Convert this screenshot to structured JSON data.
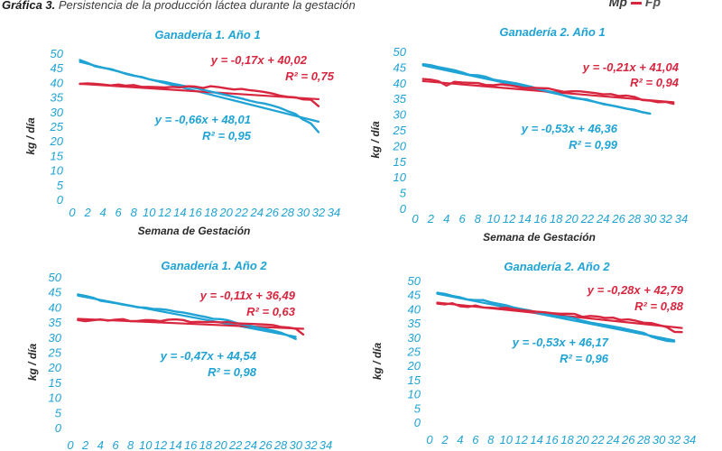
{
  "caption": {
    "prefix": "Gráfica 3.",
    "text": "Persistencia de la producción láctea durante la gestación"
  },
  "legend": {
    "mp": "Mp",
    "fp": "Fp"
  },
  "colors": {
    "mp": "#1fa3d5",
    "fp": "#d9263f",
    "axis_text": "#1fa3d5"
  },
  "chart_data": [
    {
      "type": "line",
      "title": "Ganadería 1. Año 1",
      "xlabel": "Semana de Gestación",
      "ylabel": "kg / día",
      "xticks": [
        "0",
        "2",
        "4",
        "6",
        "8",
        "10",
        "12",
        "14",
        "16",
        "18",
        "20",
        "22",
        "24",
        "26",
        "28",
        "30",
        "32",
        "34"
      ],
      "yticks": [
        "0",
        "5",
        "10",
        "15",
        "20",
        "25",
        "30",
        "35",
        "40",
        "45",
        "50"
      ],
      "xlim": [
        0,
        34
      ],
      "ylim": [
        0,
        50
      ],
      "grid": false,
      "series": [
        {
          "key": "mp",
          "x": [
            1,
            2,
            3,
            4,
            5,
            6,
            7,
            8,
            9,
            10,
            11,
            12,
            13,
            14,
            15,
            16,
            17,
            18,
            19,
            20,
            21,
            22,
            23,
            24,
            25,
            26,
            27,
            28,
            29,
            30,
            31,
            32
          ],
          "values": [
            48,
            47,
            45.8,
            45.3,
            44.9,
            44.1,
            43.2,
            42.6,
            42.2,
            41.4,
            40.9,
            40.5,
            39.9,
            39.4,
            38.9,
            38.4,
            37.8,
            37.2,
            36.6,
            36.0,
            35.4,
            34.8,
            34.1,
            33.5,
            33.1,
            32.4,
            31.6,
            30.5,
            29.5,
            27.6,
            26.3,
            23.3
          ]
        },
        {
          "key": "fp",
          "x": [
            1,
            2,
            3,
            4,
            5,
            6,
            7,
            8,
            9,
            10,
            11,
            12,
            13,
            14,
            15,
            16,
            17,
            18,
            19,
            20,
            21,
            22,
            23,
            24,
            25,
            26,
            27,
            28,
            29,
            30,
            31,
            32
          ],
          "values": [
            39.8,
            40.0,
            39.8,
            39.6,
            39.3,
            39.6,
            39.2,
            39.4,
            38.8,
            38.8,
            38.7,
            38.6,
            38.8,
            38.6,
            39.0,
            38.9,
            38.4,
            39.0,
            38.7,
            38.3,
            37.9,
            38.1,
            37.7,
            37.4,
            37.0,
            36.5,
            35.8,
            35.4,
            35.2,
            34.5,
            34.4,
            32.2
          ]
        }
      ],
      "trendlines": [
        {
          "key": "mp",
          "slope": -0.66,
          "intercept": 48.01,
          "equation": "y = -0,66x + 48,01",
          "r2": "R² = 0,95"
        },
        {
          "key": "fp",
          "slope": -0.17,
          "intercept": 40.02,
          "equation": "y = -0,17x + 40,02",
          "r2": "R² = 0,75"
        }
      ]
    },
    {
      "type": "line",
      "title": "Ganadería 2. Año 1",
      "xlabel": "Semana de Gestación",
      "ylabel": "kg / día",
      "xticks": [
        "0",
        "2",
        "4",
        "6",
        "8",
        "10",
        "12",
        "14",
        "16",
        "18",
        "20",
        "22",
        "24",
        "26",
        "28",
        "30",
        "32",
        "34"
      ],
      "yticks": [
        "0",
        "5",
        "10",
        "15",
        "20",
        "25",
        "30",
        "35",
        "40",
        "45",
        "50"
      ],
      "xlim": [
        0,
        34
      ],
      "ylim": [
        0,
        50
      ],
      "grid": false,
      "series": [
        {
          "key": "mp",
          "x": [
            1,
            2,
            3,
            4,
            5,
            6,
            7,
            8,
            9,
            10,
            11,
            12,
            13,
            14,
            15,
            16,
            17,
            18,
            19,
            20,
            21,
            22,
            23,
            24,
            25,
            26,
            27,
            28,
            29,
            30
          ],
          "values": [
            46.2,
            45.9,
            45.3,
            44.8,
            44.3,
            43.6,
            42.8,
            42.7,
            42.2,
            41.3,
            40.9,
            40.5,
            40.1,
            39.5,
            38.9,
            38.1,
            37.6,
            37.1,
            36.2,
            35.5,
            35.2,
            34.9,
            34.2,
            33.5,
            33.1,
            32.6,
            32.0,
            31.7,
            30.9,
            30.5
          ]
        },
        {
          "key": "fp",
          "x": [
            1,
            2,
            3,
            4,
            5,
            6,
            7,
            8,
            9,
            10,
            11,
            12,
            13,
            14,
            15,
            16,
            17,
            18,
            19,
            20,
            21,
            22,
            23,
            24,
            25,
            26,
            27,
            28,
            29,
            30,
            31,
            32,
            33
          ],
          "values": [
            41.5,
            41.3,
            40.8,
            39.4,
            40.6,
            40.4,
            40.3,
            40.2,
            39.6,
            39.5,
            39.8,
            39.5,
            39.1,
            38.6,
            38.7,
            38.6,
            38.5,
            37.9,
            37.4,
            37.6,
            37.6,
            37.3,
            37.0,
            36.6,
            36.7,
            36.1,
            36.2,
            35.8,
            34.8,
            34.6,
            34.1,
            34.2,
            33.6
          ]
        }
      ],
      "trendlines": [
        {
          "key": "mp",
          "slope": -0.53,
          "intercept": 46.36,
          "equation": "y = -0,53x + 46,36",
          "r2": "R² = 0,99"
        },
        {
          "key": "fp",
          "slope": -0.21,
          "intercept": 41.04,
          "equation": "y = -0,21x + 41,04",
          "r2": "R² = 0,94"
        }
      ]
    },
    {
      "type": "line",
      "title": "Ganadería 1. Año 2",
      "xlabel": "",
      "ylabel": "kg / día",
      "xticks": [
        "0",
        "2",
        "4",
        "6",
        "8",
        "10",
        "12",
        "14",
        "16",
        "18",
        "20",
        "22",
        "24",
        "26",
        "28",
        "30",
        "32",
        "34"
      ],
      "yticks": [
        "0",
        "5",
        "10",
        "15",
        "20",
        "25",
        "30",
        "35",
        "40",
        "45",
        "50"
      ],
      "xlim": [
        0,
        34
      ],
      "ylim": [
        0,
        50
      ],
      "grid": false,
      "series": [
        {
          "key": "mp",
          "x": [
            1,
            2,
            3,
            4,
            5,
            6,
            7,
            8,
            9,
            10,
            11,
            12,
            13,
            14,
            15,
            16,
            17,
            18,
            19,
            20,
            21,
            22,
            23,
            24,
            25,
            26,
            27,
            28,
            29,
            30
          ],
          "values": [
            44.5,
            44.0,
            43.4,
            42.4,
            42.0,
            41.6,
            41.1,
            40.7,
            40.2,
            40.1,
            39.7,
            39.6,
            39.3,
            38.8,
            38.5,
            38.0,
            37.5,
            37.0,
            36.4,
            36.3,
            35.9,
            35.1,
            34.5,
            34.0,
            33.4,
            33.0,
            32.5,
            31.8,
            30.8,
            29.7
          ]
        },
        {
          "key": "fp",
          "x": [
            1,
            2,
            3,
            4,
            5,
            6,
            7,
            8,
            9,
            10,
            11,
            12,
            13,
            14,
            15,
            16,
            17,
            18,
            19,
            20,
            21,
            22,
            23,
            24,
            25,
            26,
            27,
            28,
            29,
            30,
            31
          ],
          "values": [
            36.0,
            35.6,
            35.9,
            36.2,
            35.8,
            36.1,
            36.3,
            35.6,
            35.7,
            36.0,
            35.9,
            35.6,
            36.1,
            36.2,
            36.0,
            35.3,
            35.4,
            35.3,
            35.4,
            35.2,
            35.3,
            34.9,
            34.8,
            34.7,
            34.6,
            34.5,
            34.3,
            33.7,
            33.5,
            33.1,
            31.2
          ]
        }
      ],
      "trendlines": [
        {
          "key": "mp",
          "slope": -0.47,
          "intercept": 44.54,
          "equation": "y = -0,47x + 44,54",
          "r2": "R² = 0,98"
        },
        {
          "key": "fp",
          "slope": -0.11,
          "intercept": 36.49,
          "equation": "y = -0,11x + 36,49",
          "r2": "R² = 0,63"
        }
      ]
    },
    {
      "type": "line",
      "title": "Ganadería 2. Año 2",
      "xlabel": "",
      "ylabel": "kg / día",
      "xticks": [
        "0",
        "2",
        "4",
        "6",
        "8",
        "10",
        "12",
        "14",
        "16",
        "18",
        "20",
        "22",
        "24",
        "26",
        "28",
        "30",
        "32",
        "34"
      ],
      "yticks": [
        "0",
        "5",
        "10",
        "15",
        "20",
        "25",
        "30",
        "35",
        "40",
        "45",
        "50"
      ],
      "xlim": [
        0,
        34
      ],
      "ylim": [
        0,
        50
      ],
      "grid": false,
      "series": [
        {
          "key": "mp",
          "x": [
            1,
            2,
            3,
            4,
            5,
            6,
            7,
            8,
            9,
            10,
            11,
            12,
            13,
            14,
            15,
            16,
            17,
            18,
            19,
            20,
            21,
            22,
            23,
            24,
            25,
            26,
            27,
            28,
            29,
            30,
            31,
            32
          ],
          "values": [
            46.0,
            45.6,
            44.9,
            44.4,
            43.6,
            43.4,
            43.4,
            42.6,
            42.1,
            41.6,
            40.8,
            40.3,
            39.8,
            39.1,
            38.5,
            38.0,
            37.6,
            37.4,
            36.9,
            36.1,
            35.5,
            35.0,
            34.6,
            34.1,
            33.6,
            33.0,
            32.4,
            31.8,
            30.5,
            29.7,
            29.0,
            28.8
          ]
        },
        {
          "key": "fp",
          "x": [
            1,
            2,
            3,
            4,
            5,
            6,
            7,
            8,
            9,
            10,
            11,
            12,
            13,
            14,
            15,
            16,
            17,
            18,
            19,
            20,
            21,
            22,
            23,
            24,
            25,
            26,
            27,
            28,
            29,
            30,
            31,
            32,
            33
          ],
          "values": [
            42.2,
            41.9,
            42.3,
            41.2,
            41.0,
            41.5,
            40.8,
            40.7,
            40.5,
            40.7,
            40.2,
            39.8,
            39.6,
            39.3,
            39.1,
            38.8,
            38.6,
            38.6,
            38.5,
            37.5,
            37.8,
            37.6,
            37.1,
            37.2,
            36.4,
            36.6,
            36.1,
            35.4,
            35.3,
            34.6,
            33.9,
            32.2,
            32.1
          ]
        }
      ],
      "trendlines": [
        {
          "key": "mp",
          "slope": -0.53,
          "intercept": 46.17,
          "equation": "y = -0,53x + 46,17",
          "r2": "R² = 0,96"
        },
        {
          "key": "fp",
          "slope": -0.28,
          "intercept": 42.79,
          "equation": "y = -0,28x + 42,79",
          "r2": "R² = 0,88"
        }
      ]
    }
  ]
}
